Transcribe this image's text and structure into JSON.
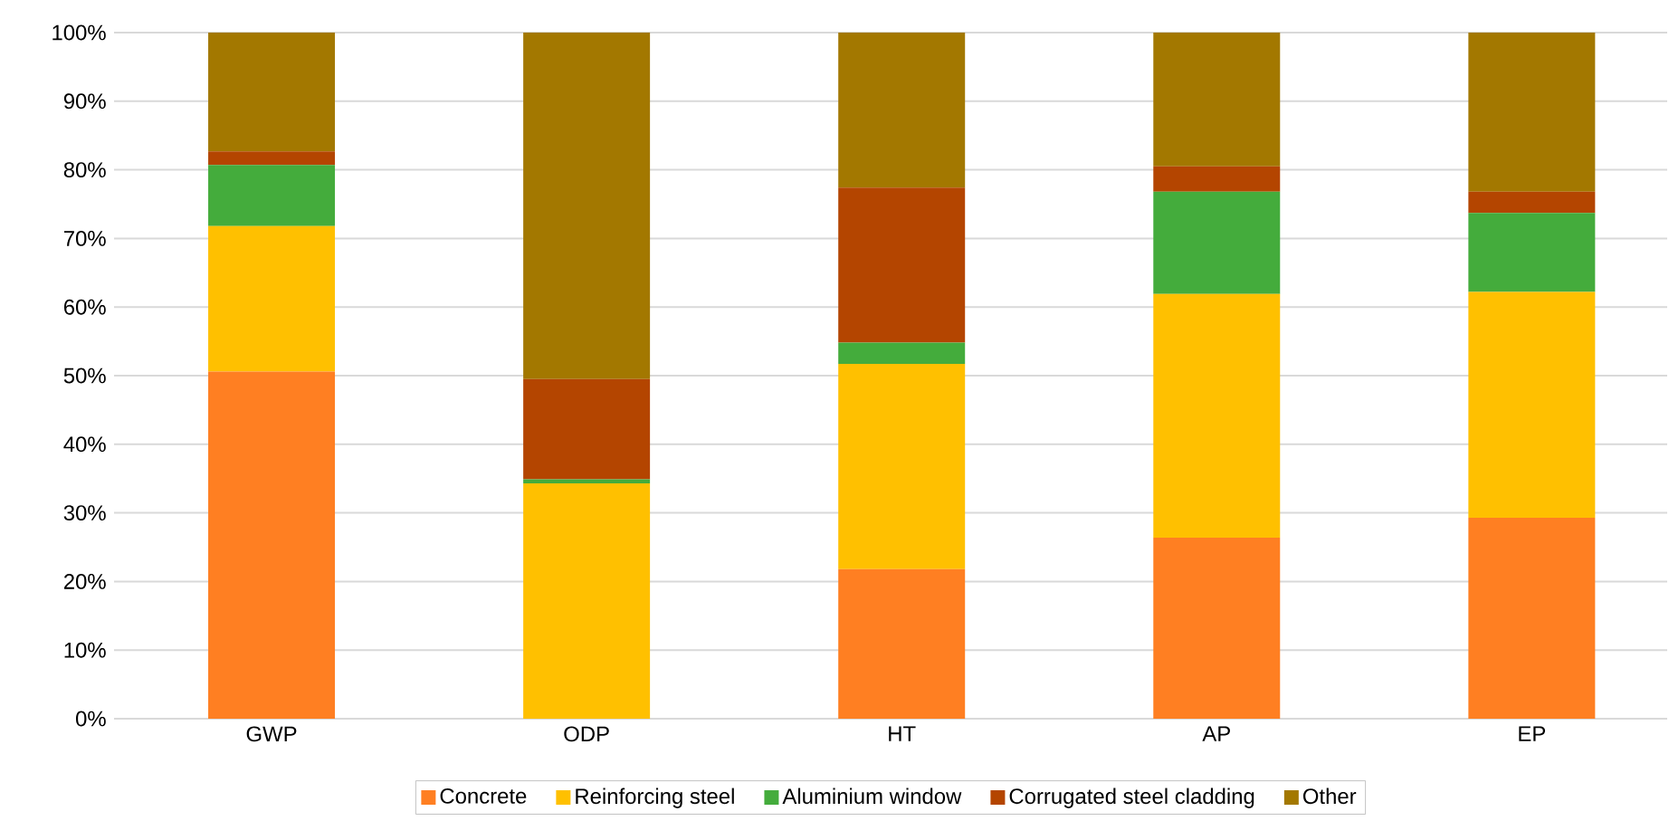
{
  "chart_data": {
    "type": "bar",
    "stacked": true,
    "categories": [
      "GWP",
      "ODP",
      "HT",
      "AP",
      "EP"
    ],
    "series": [
      {
        "name": "Concrete",
        "color": "#ff7f22",
        "values": [
          50.6,
          0,
          21.8,
          26.4,
          29.3
        ]
      },
      {
        "name": "Reinforcing steel",
        "color": "#ffc000",
        "values": [
          21.2,
          34.3,
          29.9,
          35.5,
          32.9
        ]
      },
      {
        "name": "Aluminium window",
        "color": "#44ac3c",
        "values": [
          8.9,
          0.6,
          3.1,
          14.9,
          11.5
        ]
      },
      {
        "name": "Corrugated steel cladding",
        "color": "#b44500",
        "values": [
          2.0,
          14.6,
          22.6,
          3.7,
          3.1
        ]
      },
      {
        "name": "Other",
        "color": "#a37800",
        "values": [
          17.3,
          50.5,
          22.6,
          19.5,
          23.2
        ]
      }
    ],
    "ylim": [
      0,
      100
    ],
    "yticks": [
      {
        "value": 0,
        "label": "0%"
      },
      {
        "value": 10,
        "label": "10%"
      },
      {
        "value": 20,
        "label": "20%"
      },
      {
        "value": 30,
        "label": "30%"
      },
      {
        "value": 40,
        "label": "40%"
      },
      {
        "value": 50,
        "label": "50%"
      },
      {
        "value": 60,
        "label": "60%"
      },
      {
        "value": 70,
        "label": "70%"
      },
      {
        "value": 80,
        "label": "80%"
      },
      {
        "value": 90,
        "label": "90%"
      },
      {
        "value": 100,
        "label": "100%"
      }
    ],
    "grid": "y",
    "legend": "bottom"
  }
}
